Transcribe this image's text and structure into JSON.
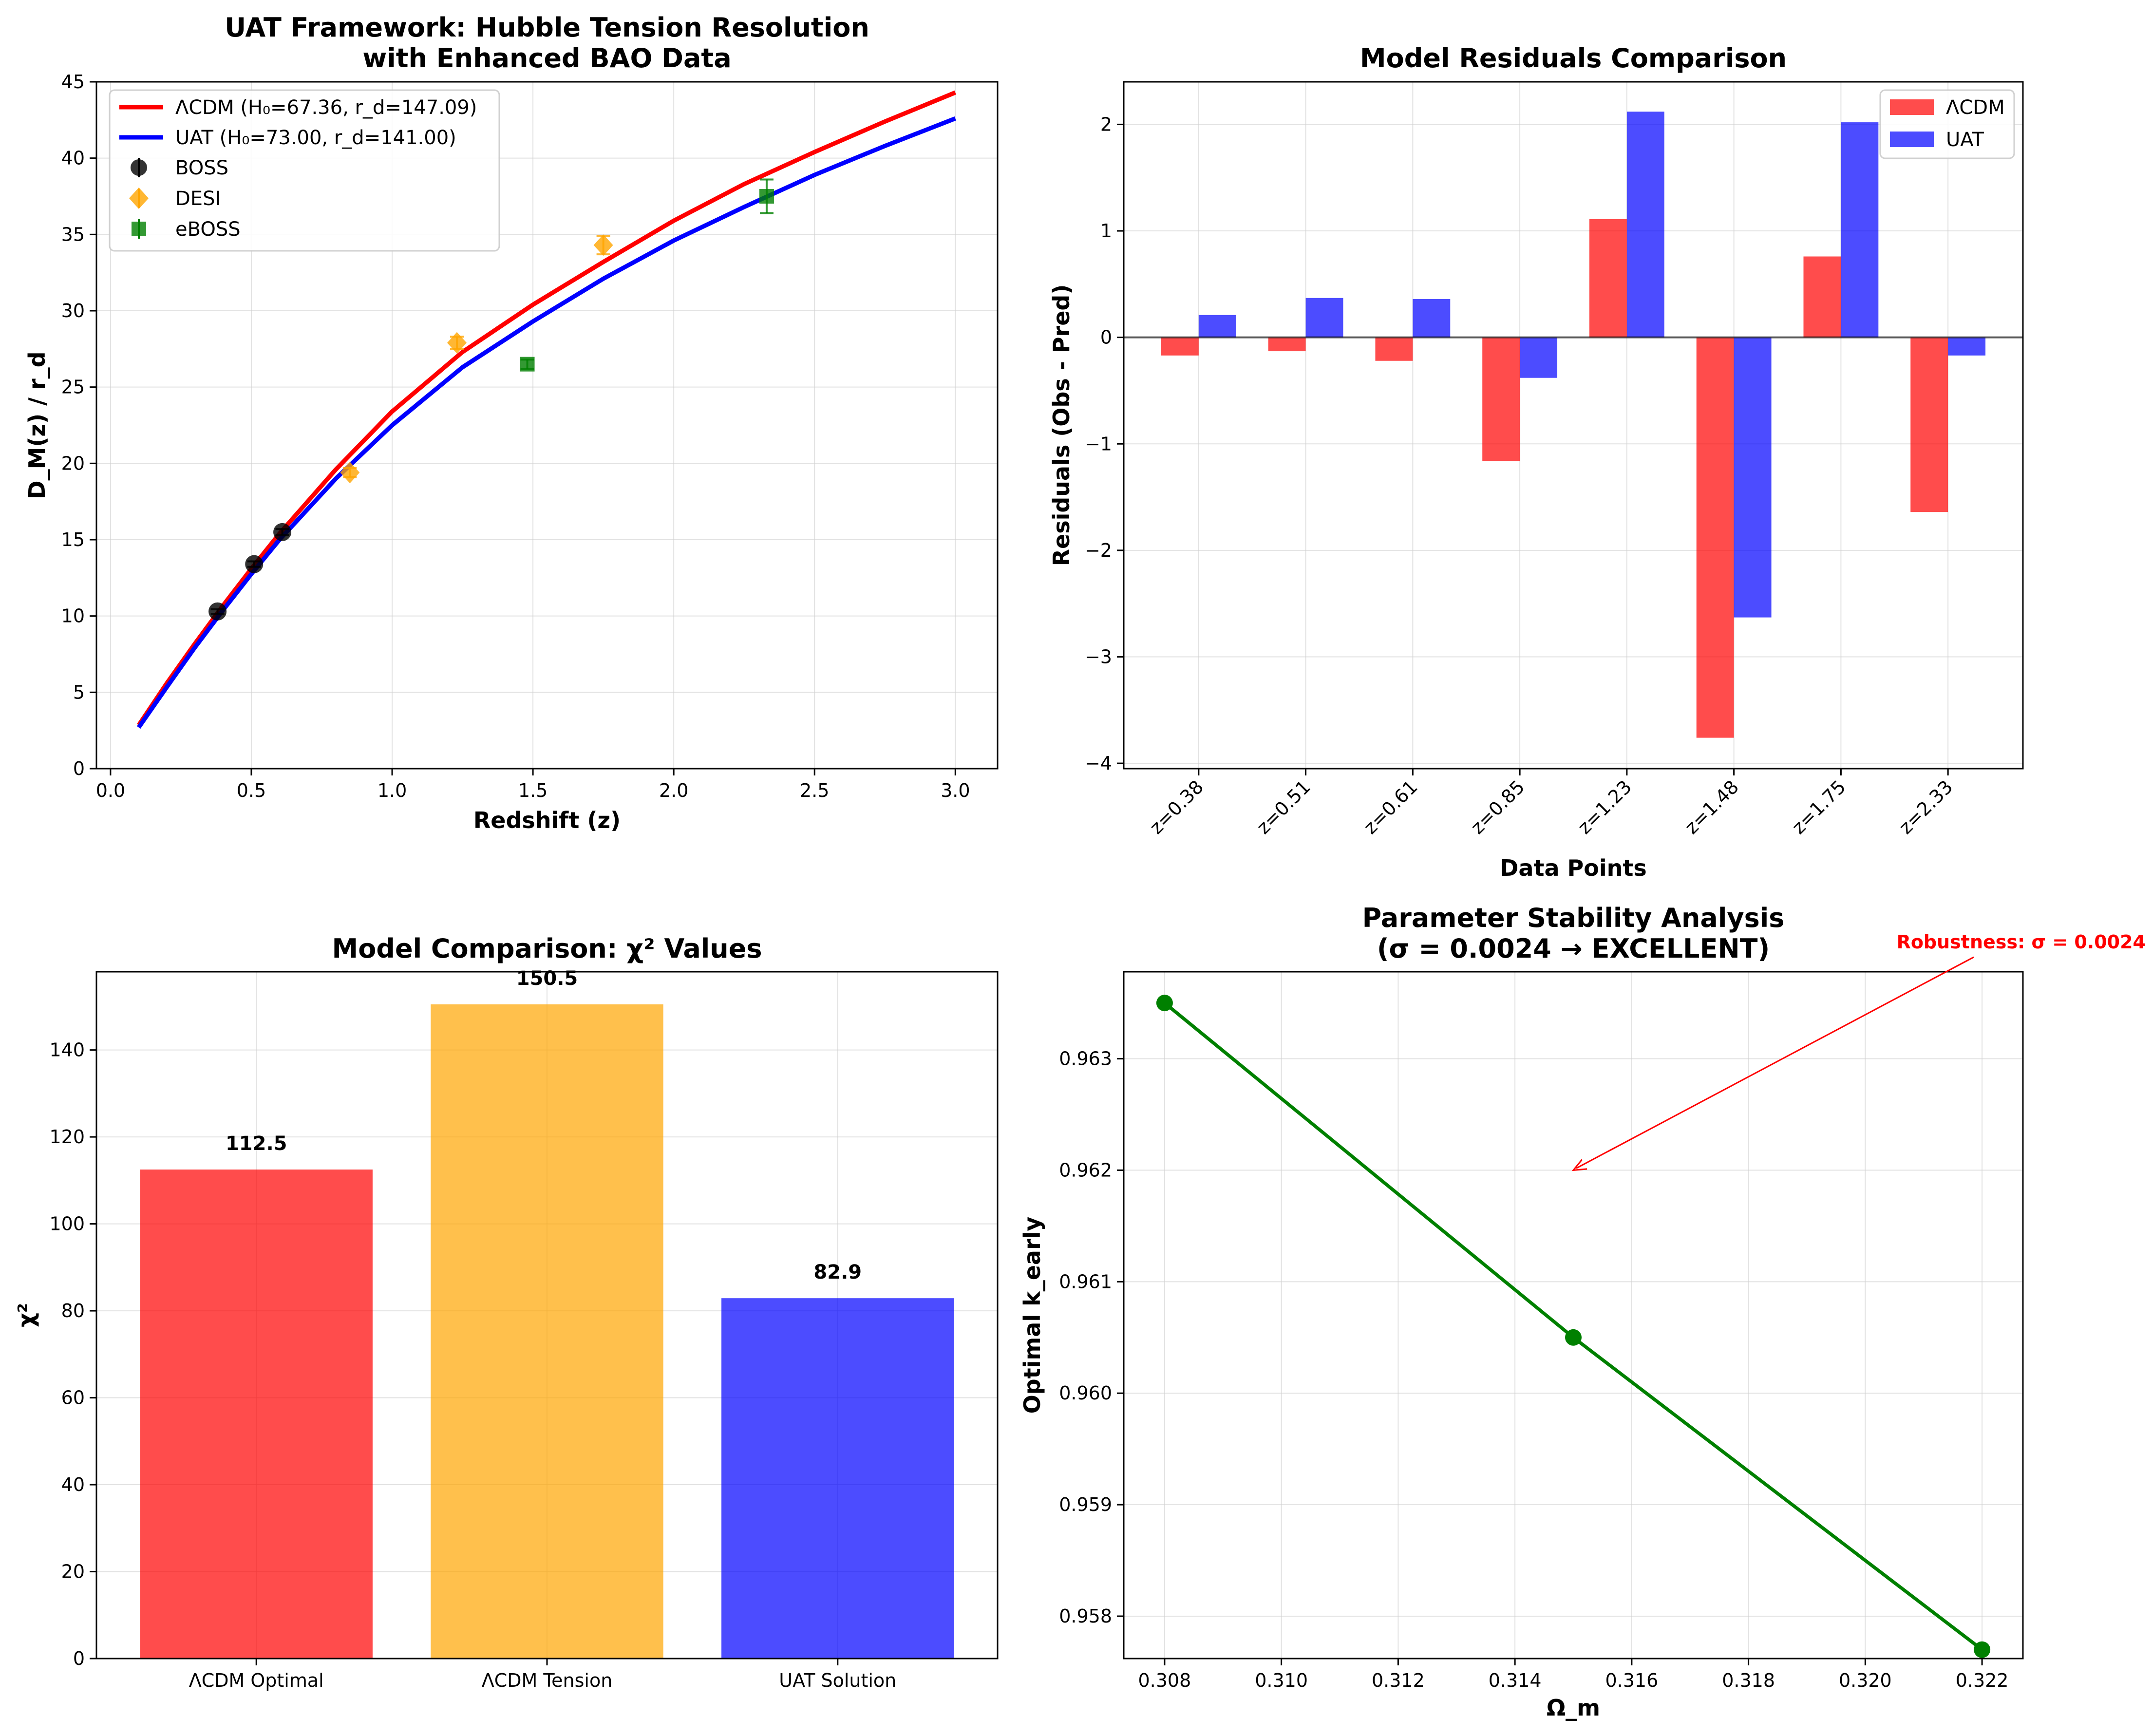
{
  "chart_data": [
    {
      "type": "line",
      "title": [
        "UAT Framework: Hubble Tension Resolution",
        "with Enhanced BAO Data"
      ],
      "xlabel": "Redshift (z)",
      "ylabel": "D_M(z) / r_d",
      "xlim": [
        -0.05,
        3.15
      ],
      "ylim": [
        0,
        45
      ],
      "xticks": [
        0.0,
        0.5,
        1.0,
        1.5,
        2.0,
        2.5,
        3.0
      ],
      "xtick_labels": [
        "0.0",
        "0.5",
        "1.0",
        "1.5",
        "2.0",
        "2.5",
        "3.0"
      ],
      "yticks": [
        0,
        5,
        10,
        15,
        20,
        25,
        30,
        35,
        40,
        45
      ],
      "ytick_labels": [
        "0",
        "5",
        "10",
        "15",
        "20",
        "25",
        "30",
        "35",
        "40",
        "45"
      ],
      "grid": true,
      "legend_position": "top-left",
      "curves": [
        {
          "name": "ΛCDM (H₀=67.36, r_d=147.09)",
          "color": "#ff0000",
          "x": [
            0.1,
            0.2,
            0.3,
            0.4,
            0.5,
            0.6,
            0.8,
            1.0,
            1.25,
            1.5,
            1.75,
            2.0,
            2.25,
            2.5,
            2.75,
            3.0
          ],
          "y": [
            2.85,
            5.6,
            8.2,
            10.7,
            13.1,
            15.4,
            19.6,
            23.4,
            27.3,
            30.4,
            33.2,
            35.9,
            38.3,
            40.4,
            42.4,
            44.3
          ]
        },
        {
          "name": "UAT (H₀=73.00, r_d=141.00)",
          "color": "#0000ff",
          "x": [
            0.1,
            0.2,
            0.3,
            0.4,
            0.5,
            0.6,
            0.8,
            1.0,
            1.25,
            1.5,
            1.75,
            2.0,
            2.25,
            2.5,
            2.75,
            3.0
          ],
          "y": [
            2.7,
            5.35,
            7.95,
            10.4,
            12.75,
            15.0,
            19.0,
            22.5,
            26.3,
            29.3,
            32.1,
            34.6,
            36.8,
            38.9,
            40.8,
            42.6
          ]
        }
      ],
      "points": [
        {
          "name": "BOSS",
          "color": "#000000",
          "marker": "circle",
          "x": [
            0.38,
            0.51,
            0.61
          ],
          "y": [
            10.3,
            13.4,
            15.5
          ],
          "err": [
            0.15,
            0.18,
            0.2
          ]
        },
        {
          "name": "DESI",
          "color": "#ffa500",
          "marker": "diamond",
          "x": [
            0.85,
            1.23,
            1.75
          ],
          "y": [
            19.4,
            27.9,
            34.3
          ],
          "err": [
            0.3,
            0.4,
            0.6
          ]
        },
        {
          "name": "eBOSS",
          "color": "#008000",
          "marker": "square",
          "x": [
            1.48,
            2.33
          ],
          "y": [
            26.5,
            37.5
          ],
          "err": [
            0.3,
            1.1
          ]
        }
      ]
    },
    {
      "type": "bar",
      "title": "Model Residuals Comparison",
      "xlabel": "Data Points",
      "ylabel": "Residuals (Obs - Pred)",
      "categories": [
        "z=0.38",
        "z=0.51",
        "z=0.61",
        "z=0.85",
        "z=1.23",
        "z=1.48",
        "z=1.75",
        "z=2.33"
      ],
      "ylim": [
        -4.05,
        2.4
      ],
      "yticks": [
        -4,
        -3,
        -2,
        -1,
        0,
        1,
        2
      ],
      "ytick_labels": [
        "−4",
        "−3",
        "−2",
        "−1",
        "0",
        "1",
        "2"
      ],
      "grid": true,
      "legend_position": "top-right",
      "series": [
        {
          "name": "ΛCDM",
          "color": "#ff0000",
          "values": [
            -0.17,
            -0.13,
            -0.22,
            -1.16,
            1.11,
            -3.76,
            0.76,
            -1.64
          ]
        },
        {
          "name": "UAT",
          "color": "#0000ff",
          "values": [
            0.21,
            0.37,
            0.36,
            -0.38,
            2.12,
            -2.63,
            2.02,
            -0.17
          ]
        }
      ]
    },
    {
      "type": "bar",
      "title": "Model Comparison: χ² Values",
      "xlabel": "",
      "ylabel": "χ²",
      "categories": [
        "ΛCDM Optimal",
        "ΛCDM Tension",
        "UAT Solution"
      ],
      "values": [
        112.5,
        150.5,
        82.9
      ],
      "value_labels": [
        "112.5",
        "150.5",
        "82.9"
      ],
      "colors": [
        "#ff0000",
        "#ffa500",
        "#0000ff"
      ],
      "ylim": [
        0,
        158
      ],
      "yticks": [
        0,
        20,
        40,
        60,
        80,
        100,
        120,
        140
      ],
      "ytick_labels": [
        "0",
        "20",
        "40",
        "60",
        "80",
        "100",
        "120",
        "140"
      ],
      "grid": true
    },
    {
      "type": "line",
      "title": [
        "Parameter Stability Analysis",
        "(σ = 0.0024 → EXCELLENT)"
      ],
      "xlabel": "Ω_m",
      "ylabel": "Optimal k_early",
      "x": [
        0.308,
        0.315,
        0.322
      ],
      "y": [
        0.9635,
        0.9605,
        0.9577
      ],
      "color": "#008000",
      "xlim": [
        0.3073,
        0.3227
      ],
      "ylim": [
        0.95762,
        0.96378
      ],
      "xticks": [
        0.308,
        0.31,
        0.312,
        0.314,
        0.316,
        0.318,
        0.32,
        0.322
      ],
      "xtick_labels": [
        "0.308",
        "0.310",
        "0.312",
        "0.314",
        "0.316",
        "0.318",
        "0.320",
        "0.322"
      ],
      "yticks": [
        0.958,
        0.959,
        0.96,
        0.961,
        0.962,
        0.963
      ],
      "ytick_labels": [
        "0.958",
        "0.959",
        "0.960",
        "0.961",
        "0.962",
        "0.963"
      ],
      "grid": true,
      "annotation": {
        "text": "Robustness: σ = 0.0024",
        "x": 0.315,
        "y": 0.962,
        "color": "#ff0000"
      }
    }
  ]
}
